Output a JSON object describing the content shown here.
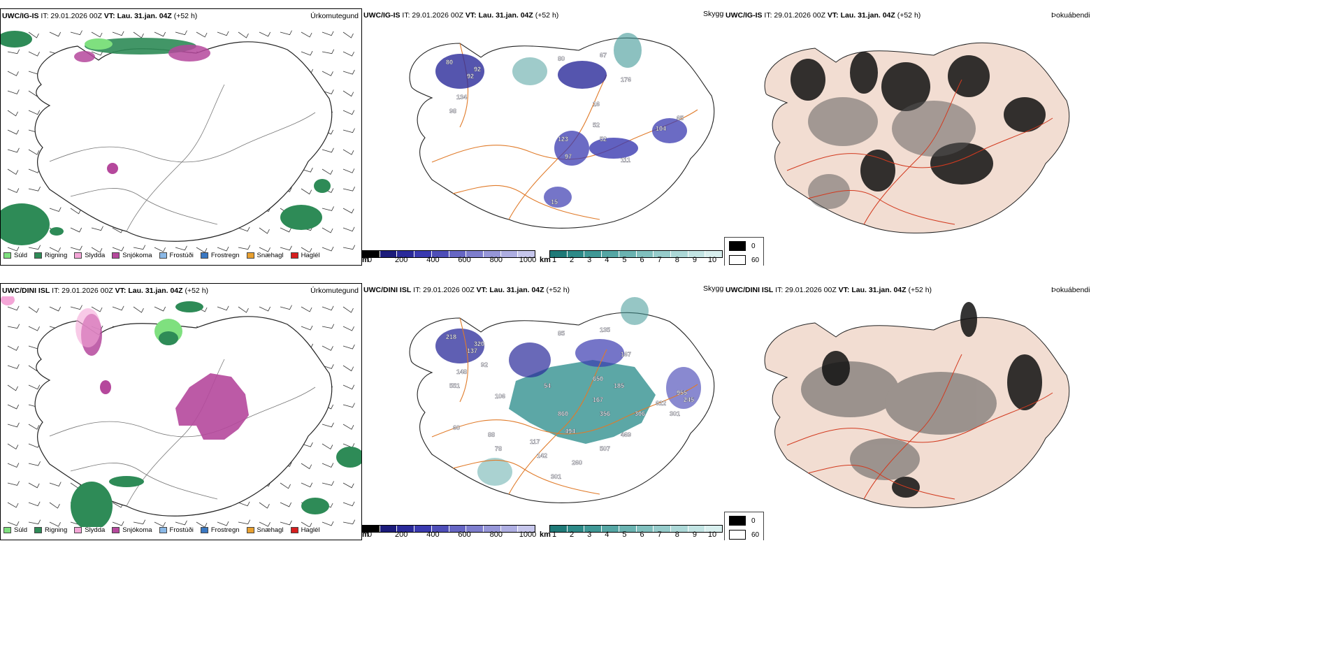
{
  "rows": [
    {
      "model": "UWC/IG-IS",
      "it_label": "IT: 29.01.2026 00Z",
      "vt_prefix": "VT:",
      "vt_value": "Lau. 31.jan. 04Z",
      "lead": "(+52 h)"
    },
    {
      "model": "UWC/DINI ISL",
      "it_label": "IT: 29.01.2026 00Z",
      "vt_prefix": "VT:",
      "vt_value": "Lau. 31.jan. 04Z",
      "lead": "(+52 h)"
    }
  ],
  "panels": {
    "precip_type": {
      "name": "Úrkomutegund"
    },
    "visibility": {
      "name": "Skyggni"
    },
    "fog": {
      "name": "Þokuábendi"
    }
  },
  "precip_legend": [
    {
      "label": "Súld",
      "color": "#7fe07f"
    },
    {
      "label": "Rigning",
      "color": "#2e8b57"
    },
    {
      "label": "Slydda",
      "color": "#f4a6d7"
    },
    {
      "label": "Snjókoma",
      "color": "#b5489c"
    },
    {
      "label": "Frostúði",
      "color": "#8ab8e6"
    },
    {
      "label": "Frostregn",
      "color": "#3a78c2"
    },
    {
      "label": "Snæhagl",
      "color": "#e8a030"
    },
    {
      "label": "Haglél",
      "color": "#d61e1e"
    }
  ],
  "vis_m": {
    "unit": "m",
    "ticks": [
      "0",
      "200",
      "400",
      "600",
      "800",
      "1000"
    ],
    "colors": [
      "#000000",
      "#1b1b7a",
      "#2a2a9a",
      "#3a3ab0",
      "#4e4eb8",
      "#6666c4",
      "#7e7ece",
      "#9696d8",
      "#aeaee2",
      "#c6c6ec"
    ]
  },
  "vis_km": {
    "unit": "km",
    "ticks": [
      "1",
      "2",
      "3",
      "4",
      "5",
      "6",
      "7",
      "8",
      "9",
      "10"
    ],
    "colors": [
      "#1f7a78",
      "#2d8a88",
      "#3f9896",
      "#55a6a4",
      "#6ab3b1",
      "#80c0be",
      "#96cccb",
      "#acd8d7",
      "#c2e4e3",
      "#d8efee"
    ]
  },
  "fog_legend": {
    "high": "0",
    "low": "60"
  },
  "visibility_labels_row1": [
    "80",
    "92",
    "134",
    "98",
    "80",
    "67",
    "176",
    "52",
    "97",
    "104",
    "111",
    "123",
    "65",
    "52",
    "15",
    "92",
    "16"
  ],
  "visibility_labels_row2": [
    "218",
    "137",
    "148",
    "551",
    "85",
    "135",
    "167",
    "167",
    "494",
    "622",
    "469",
    "860",
    "955",
    "356",
    "301",
    "320",
    "650",
    "306",
    "507",
    "260",
    "117",
    "88",
    "78",
    "245",
    "301",
    "142",
    "54",
    "92",
    "106",
    "60",
    "185"
  ],
  "colors": {
    "coast": "#222222",
    "roads_orange": "#e07b2a",
    "roads_red": "#d23a1f",
    "rain": "#2e8b57",
    "drizzle": "#7fe07f",
    "snow": "#b5489c",
    "sleet": "#f4a6d7",
    "vis_dark": "#2a2a9a",
    "vis_teal": "#3f9896",
    "fog_land": "#f2ddd2"
  }
}
